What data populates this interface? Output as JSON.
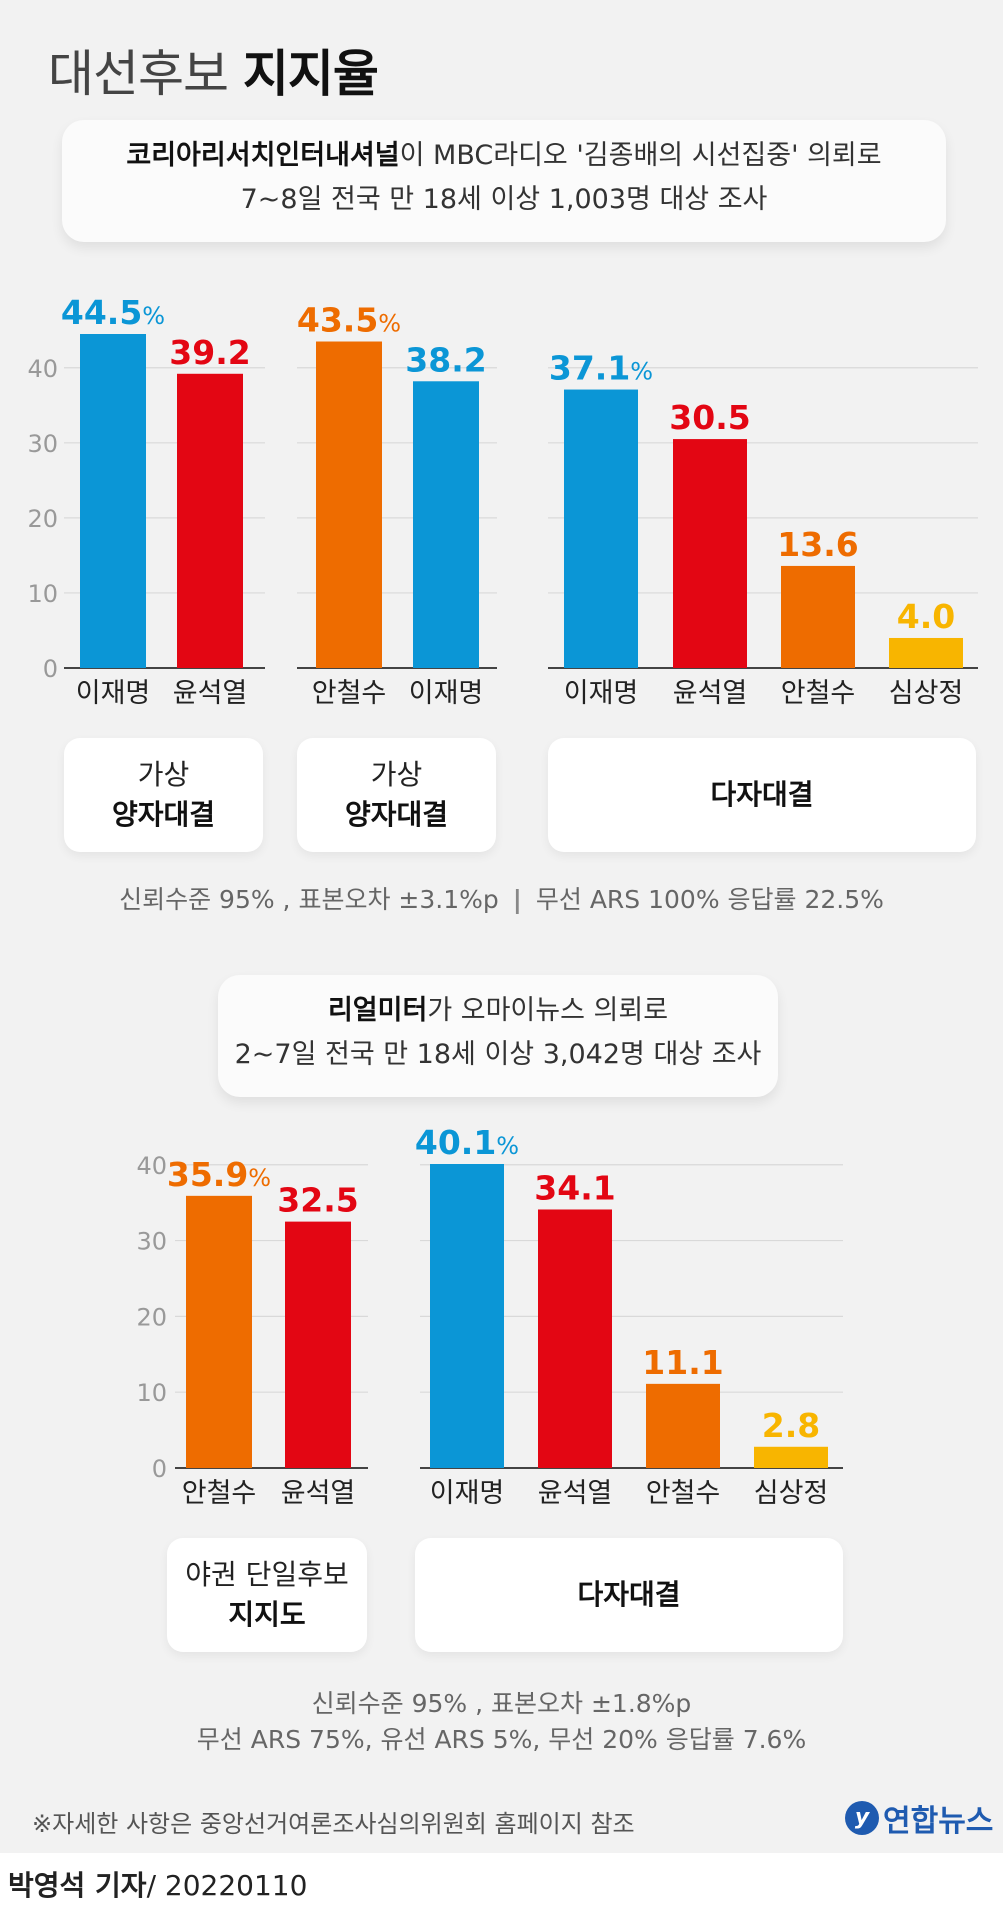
{
  "page": {
    "title_light": "대선후보 ",
    "title_bold": "지지율",
    "footnote": "※자세한 사항은 중앙선거여론조사심의위원회 홈페이지 참조",
    "logo": "연합뉴스",
    "reporter": "박영석 기자",
    "date": "/ 20220110"
  },
  "survey1": {
    "org": "코리아리서치인터내셔널",
    "desc": "이 MBC라디오 '김종배의 시선집중' 의뢰로",
    "line2": "7~8일 전국 만 18세 이상 1,003명 대상 조사",
    "note_a": "신뢰수준 95% , 표본오차 ±3.1%p",
    "note_sep": "|",
    "note_b": "무선 ARS 100%  응답률 22.5%",
    "label1_light": "가상",
    "label1_bold": "양자대결",
    "label2_light": "가상",
    "label2_bold": "양자대결",
    "label3_bold": "다자대결"
  },
  "survey2": {
    "org": "리얼미터",
    "desc": "가 오마이뉴스 의뢰로",
    "line2": "2~7일 전국 만 18세 이상 3,042명 대상 조사",
    "note_a": "신뢰수준 95% , 표본오차 ±1.8%p",
    "note_b": "무선 ARS 75%, 유선 ARS 5%, 무선 20%  응답률 7.6%",
    "label1_light": "야권 단일후보",
    "label1_bold": "지지도",
    "label2_bold": "다자대결"
  },
  "colors": {
    "lee": "#0b96d6",
    "yoon": "#e30613",
    "ahn": "#ee6c00",
    "sim": "#f8b500"
  },
  "chart_data": [
    {
      "type": "bar",
      "y_ticks": [
        0,
        10,
        20,
        30,
        40
      ],
      "ylim": [
        0,
        44.5
      ],
      "groups": [
        {
          "categories": [
            "이재명",
            "윤석열"
          ],
          "values": [
            44.5,
            39.2
          ],
          "labels": [
            "44.5",
            "39.2"
          ],
          "show_pct": [
            true,
            false
          ],
          "colors": [
            "#0b96d6",
            "#e30613"
          ]
        },
        {
          "categories": [
            "안철수",
            "이재명"
          ],
          "values": [
            43.5,
            38.2
          ],
          "labels": [
            "43.5",
            "38.2"
          ],
          "show_pct": [
            true,
            false
          ],
          "colors": [
            "#ee6c00",
            "#0b96d6"
          ]
        },
        {
          "categories": [
            "이재명",
            "윤석열",
            "안철수",
            "심상정"
          ],
          "values": [
            37.1,
            30.5,
            13.6,
            4.0
          ],
          "labels": [
            "37.1",
            "30.5",
            "13.6",
            "4.0"
          ],
          "show_pct": [
            true,
            false,
            false,
            false
          ],
          "colors": [
            "#0b96d6",
            "#e30613",
            "#ee6c00",
            "#f8b500"
          ]
        }
      ]
    },
    {
      "type": "bar",
      "y_ticks": [
        0,
        10,
        20,
        30,
        40
      ],
      "ylim": [
        0,
        40.1
      ],
      "groups": [
        {
          "categories": [
            "안철수",
            "윤석열"
          ],
          "values": [
            35.9,
            32.5
          ],
          "labels": [
            "35.9",
            "32.5"
          ],
          "show_pct": [
            true,
            false
          ],
          "colors": [
            "#ee6c00",
            "#e30613"
          ]
        },
        {
          "categories": [
            "이재명",
            "윤석열",
            "안철수",
            "심상정"
          ],
          "values": [
            40.1,
            34.1,
            11.1,
            2.8
          ],
          "labels": [
            "40.1",
            "34.1",
            "11.1",
            "2.8"
          ],
          "show_pct": [
            true,
            false,
            false,
            false
          ],
          "colors": [
            "#0b96d6",
            "#e30613",
            "#ee6c00",
            "#f8b500"
          ]
        }
      ]
    }
  ]
}
